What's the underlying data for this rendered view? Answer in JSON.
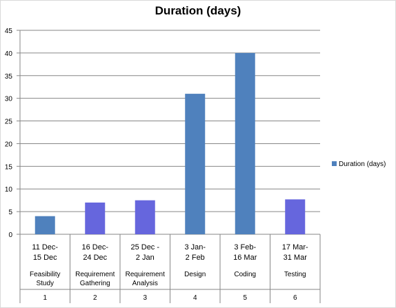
{
  "chart_data": {
    "type": "bar",
    "title": "Duration (days)",
    "ylim": [
      0,
      45
    ],
    "yticks": [
      0,
      5,
      10,
      15,
      20,
      25,
      30,
      35,
      40,
      45
    ],
    "grid": true,
    "legend_position": "right",
    "categories": [
      {
        "dates": [
          "11 Dec-",
          "15 Dec"
        ],
        "activity": [
          "Feasibility",
          "Study"
        ],
        "number": "1"
      },
      {
        "dates": [
          "16 Dec-",
          "24 Dec"
        ],
        "activity": [
          "Requirement",
          "Gathering"
        ],
        "number": "2"
      },
      {
        "dates": [
          "25 Dec -",
          "2 Jan"
        ],
        "activity": [
          "Requirement",
          "Analysis"
        ],
        "number": "3"
      },
      {
        "dates": [
          "3 Jan-",
          "2 Feb"
        ],
        "activity": [
          "Design"
        ],
        "number": "4"
      },
      {
        "dates": [
          "3 Feb-",
          "16 Mar"
        ],
        "activity": [
          "Coding"
        ],
        "number": "5"
      },
      {
        "dates": [
          "17 Mar-",
          "31 Mar"
        ],
        "activity": [
          "Testing"
        ],
        "number": "6"
      }
    ],
    "series": [
      {
        "name": "Duration (days)",
        "values": [
          4,
          7,
          7.5,
          31,
          40,
          7.7
        ],
        "colors": [
          "#4f81bd",
          "#6666dd",
          "#6666dd",
          "#4f81bd",
          "#4f81bd",
          "#6666dd"
        ]
      }
    ],
    "legend_color": "#4f81bd",
    "axis_color": "#868686",
    "grid_color": "#868686"
  }
}
